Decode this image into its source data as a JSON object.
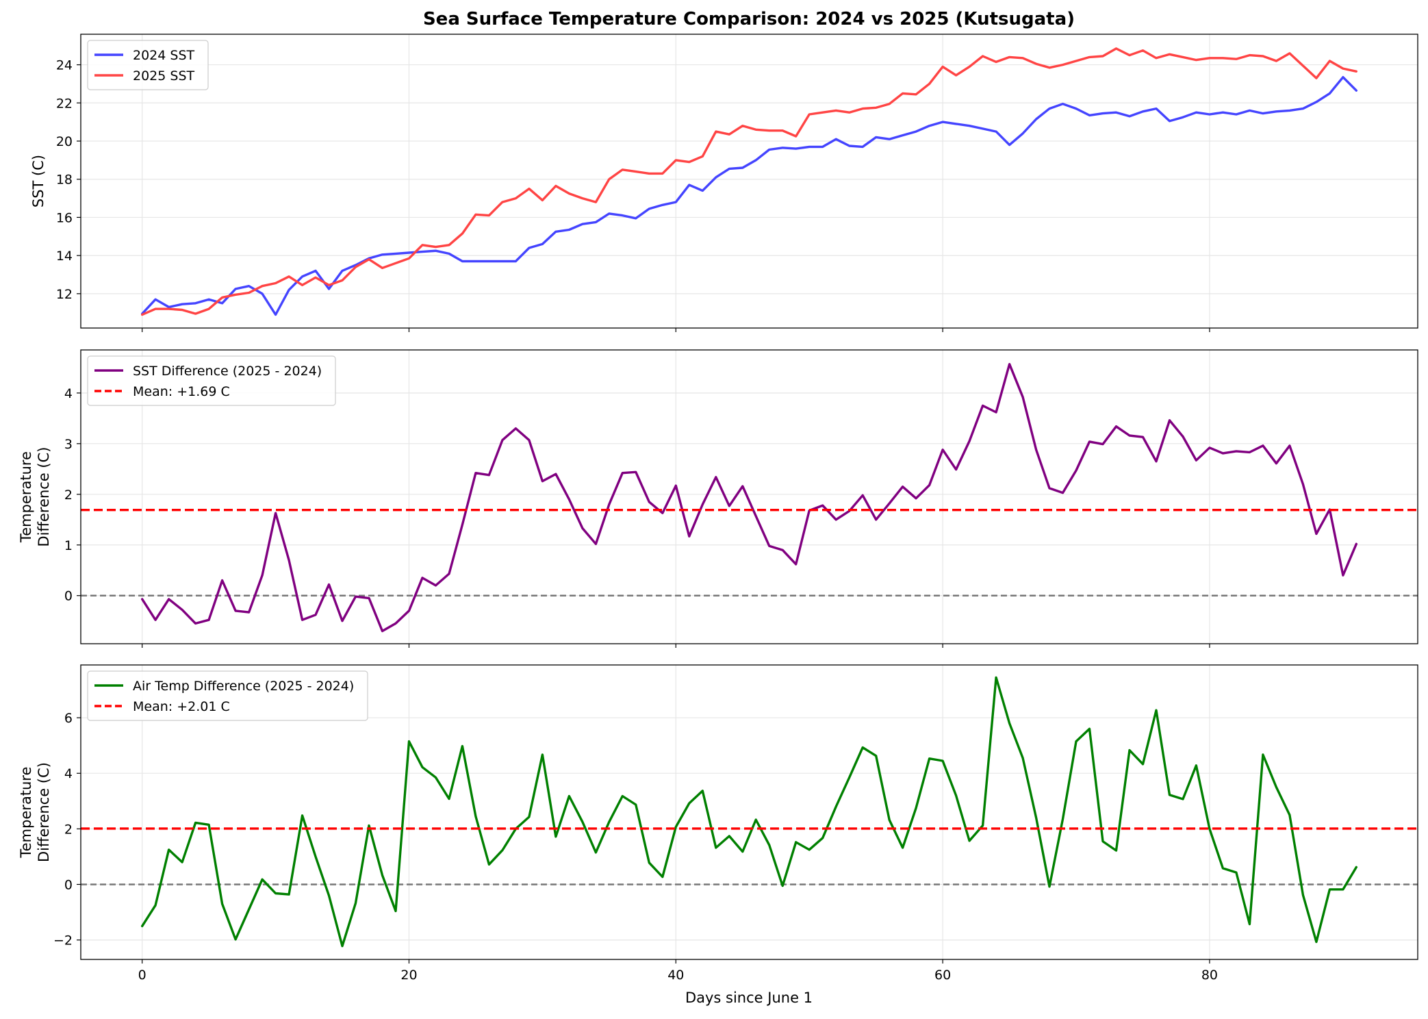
{
  "chart_data": [
    {
      "type": "line",
      "title": "Sea Surface Temperature Comparison: 2024 vs 2025 (Kutsugata)",
      "xlabel": "",
      "ylabel": "SST (C)",
      "xlim": [
        -4.6,
        95.6
      ],
      "ylim": [
        10.2,
        25.6
      ],
      "xticks": [
        0,
        20,
        40,
        60,
        80
      ],
      "xtick_labels": [
        "",
        "",
        "",
        "",
        ""
      ],
      "yticks": [
        12,
        14,
        16,
        18,
        20,
        22,
        24
      ],
      "grid": true,
      "legend_position": "upper-left",
      "series": [
        {
          "name": "2024 SST",
          "color": "#4444ff",
          "line_style": "solid",
          "x": [
            0,
            1,
            2,
            3,
            4,
            5,
            6,
            7,
            8,
            9,
            10,
            11,
            12,
            13,
            14,
            15,
            16,
            17,
            18,
            19,
            20,
            21,
            22,
            23,
            24,
            25,
            26,
            27,
            28,
            29,
            30,
            31,
            32,
            33,
            34,
            35,
            36,
            37,
            38,
            39,
            40,
            41,
            42,
            43,
            44,
            45,
            46,
            47,
            48,
            49,
            50,
            51,
            52,
            53,
            54,
            55,
            56,
            57,
            58,
            59,
            60,
            61,
            62,
            63,
            64,
            65,
            66,
            67,
            68,
            69,
            70,
            71,
            72,
            73,
            74,
            75,
            76,
            77,
            78,
            79,
            80,
            81,
            82,
            83,
            84,
            85,
            86,
            87,
            88,
            89,
            90,
            91
          ],
          "values": [
            10.95,
            11.7,
            11.3,
            11.45,
            11.5,
            11.7,
            11.5,
            12.25,
            12.4,
            12.0,
            10.9,
            12.2,
            12.9,
            13.2,
            12.25,
            13.2,
            13.5,
            13.85,
            14.05,
            14.1,
            14.15,
            14.2,
            14.25,
            14.1,
            13.7,
            13.7,
            13.7,
            13.7,
            13.7,
            14.4,
            14.6,
            15.25,
            15.35,
            15.65,
            15.75,
            16.2,
            16.1,
            15.95,
            16.45,
            16.65,
            16.8,
            17.7,
            17.4,
            18.1,
            18.55,
            18.6,
            19.0,
            19.55,
            19.65,
            19.6,
            19.7,
            19.7,
            20.1,
            19.75,
            19.7,
            20.2,
            20.1,
            20.3,
            20.5,
            20.8,
            21.0,
            20.9,
            20.8,
            20.65,
            20.5,
            19.8,
            20.4,
            21.15,
            21.7,
            21.95,
            21.7,
            21.35,
            21.45,
            21.5,
            21.3,
            21.55,
            21.7,
            21.05,
            21.25,
            21.5,
            21.4,
            21.5,
            21.4,
            21.6,
            21.45,
            21.55,
            21.6,
            21.7,
            22.05,
            22.5,
            23.35,
            22.65
          ]
        },
        {
          "name": "2025 SST",
          "color": "#ff4444",
          "line_style": "solid",
          "x": [
            0,
            1,
            2,
            3,
            4,
            5,
            6,
            7,
            8,
            9,
            10,
            11,
            12,
            13,
            14,
            15,
            16,
            17,
            18,
            19,
            20,
            21,
            22,
            23,
            24,
            25,
            26,
            27,
            28,
            29,
            30,
            31,
            32,
            33,
            34,
            35,
            36,
            37,
            38,
            39,
            40,
            41,
            42,
            43,
            44,
            45,
            46,
            47,
            48,
            49,
            50,
            51,
            52,
            53,
            54,
            55,
            56,
            57,
            58,
            59,
            60,
            61,
            62,
            63,
            64,
            65,
            66,
            67,
            68,
            69,
            70,
            71,
            72,
            73,
            74,
            75,
            76,
            77,
            78,
            79,
            80,
            81,
            82,
            83,
            84,
            85,
            86,
            87,
            88,
            89,
            90,
            91
          ],
          "values": [
            10.9,
            11.2,
            11.2,
            11.15,
            10.95,
            11.2,
            11.8,
            11.95,
            12.05,
            12.4,
            12.55,
            12.9,
            12.45,
            12.85,
            12.45,
            12.7,
            13.4,
            13.8,
            13.35,
            13.6,
            13.85,
            14.55,
            14.45,
            14.55,
            15.15,
            16.15,
            16.1,
            16.8,
            17.0,
            17.5,
            16.9,
            17.65,
            17.25,
            17.0,
            16.8,
            18.0,
            18.5,
            18.4,
            18.3,
            18.3,
            19.0,
            18.9,
            19.2,
            20.5,
            20.35,
            20.8,
            20.6,
            20.55,
            20.55,
            20.25,
            21.4,
            21.5,
            21.6,
            21.5,
            21.7,
            21.75,
            21.95,
            22.5,
            22.45,
            23.0,
            23.9,
            23.45,
            23.9,
            24.45,
            24.15,
            24.4,
            24.35,
            24.05,
            23.85,
            24.0,
            24.2,
            24.4,
            24.45,
            24.85,
            24.5,
            24.75,
            24.35,
            24.55,
            24.4,
            24.25,
            24.35,
            24.35,
            24.3,
            24.5,
            24.45,
            24.2,
            24.6,
            23.95,
            23.3,
            24.2,
            23.8,
            23.65
          ]
        }
      ]
    },
    {
      "type": "line",
      "title": "",
      "xlabel": "",
      "ylabel": "Temperature\nDifference (C)",
      "ylabel_lines": [
        "Temperature",
        "Difference (C)"
      ],
      "xlim": [
        -4.6,
        95.6
      ],
      "ylim": [
        -0.95,
        4.85
      ],
      "xticks": [
        0,
        20,
        40,
        60,
        80
      ],
      "xtick_labels": [
        "",
        "",
        "",
        "",
        ""
      ],
      "yticks": [
        0,
        1,
        2,
        3,
        4
      ],
      "grid": true,
      "legend_position": "upper-left",
      "series": [
        {
          "name": "SST Difference (2025 - 2024)",
          "color": "#800080",
          "line_style": "solid",
          "x": [
            0,
            1,
            2,
            3,
            4,
            5,
            6,
            7,
            8,
            9,
            10,
            11,
            12,
            13,
            14,
            15,
            16,
            17,
            18,
            19,
            20,
            21,
            22,
            23,
            24,
            25,
            26,
            27,
            28,
            29,
            30,
            31,
            32,
            33,
            34,
            35,
            36,
            37,
            38,
            39,
            40,
            41,
            42,
            43,
            44,
            45,
            46,
            47,
            48,
            49,
            50,
            51,
            52,
            53,
            54,
            55,
            56,
            57,
            58,
            59,
            60,
            61,
            62,
            63,
            64,
            65,
            66,
            67,
            68,
            69,
            70,
            71,
            72,
            73,
            74,
            75,
            76,
            77,
            78,
            79,
            80,
            81,
            82,
            83,
            84,
            85,
            86,
            87,
            88,
            89,
            90,
            91
          ],
          "values": [
            -0.07,
            -0.48,
            -0.07,
            -0.28,
            -0.55,
            -0.48,
            0.3,
            -0.3,
            -0.33,
            0.4,
            1.63,
            0.7,
            -0.48,
            -0.38,
            0.22,
            -0.5,
            -0.02,
            -0.05,
            -0.7,
            -0.55,
            -0.3,
            0.35,
            0.2,
            0.43,
            1.4,
            2.42,
            2.38,
            3.07,
            3.3,
            3.07,
            2.26,
            2.4,
            1.9,
            1.33,
            1.02,
            1.8,
            2.42,
            2.44,
            1.85,
            1.63,
            2.17,
            1.17,
            1.8,
            2.34,
            1.77,
            2.16,
            1.57,
            0.98,
            0.9,
            0.62,
            1.68,
            1.78,
            1.5,
            1.67,
            1.98,
            1.5,
            1.82,
            2.15,
            1.92,
            2.18,
            2.88,
            2.49,
            3.05,
            3.75,
            3.62,
            4.57,
            3.92,
            2.88,
            2.12,
            2.03,
            2.47,
            3.04,
            2.99,
            3.34,
            3.16,
            3.13,
            2.65,
            3.46,
            3.14,
            2.67,
            2.92,
            2.81,
            2.85,
            2.83,
            2.96,
            2.61,
            2.96,
            2.2,
            1.22,
            1.7,
            0.4,
            1.02
          ]
        },
        {
          "name": "Mean: +1.69 C",
          "color": "#ff0000",
          "line_style": "dashed",
          "y": 1.69
        },
        {
          "name": "",
          "color": "#777777",
          "line_style": "dashed",
          "y": 0
        }
      ]
    },
    {
      "type": "line",
      "title": "",
      "xlabel": "Days since June 1",
      "ylabel": "Temperature\nDifference (C)",
      "ylabel_lines": [
        "Temperature",
        "Difference (C)"
      ],
      "xlim": [
        -4.6,
        95.6
      ],
      "ylim": [
        -2.7,
        7.9
      ],
      "xticks": [
        0,
        20,
        40,
        60,
        80
      ],
      "xtick_labels": [
        "0",
        "20",
        "40",
        "60",
        "80"
      ],
      "yticks": [
        -2,
        0,
        2,
        4,
        6
      ],
      "grid": true,
      "legend_position": "upper-left",
      "series": [
        {
          "name": "Air Temp Difference (2025 - 2024)",
          "color": "#008000",
          "line_style": "solid",
          "x": [
            0,
            1,
            2,
            3,
            4,
            5,
            6,
            7,
            8,
            9,
            10,
            11,
            12,
            13,
            14,
            15,
            16,
            17,
            18,
            19,
            20,
            21,
            22,
            23,
            24,
            25,
            26,
            27,
            28,
            29,
            30,
            31,
            32,
            33,
            34,
            35,
            36,
            37,
            38,
            39,
            40,
            41,
            42,
            43,
            44,
            45,
            46,
            47,
            48,
            49,
            50,
            51,
            52,
            53,
            54,
            55,
            56,
            57,
            58,
            59,
            60,
            61,
            62,
            63,
            64,
            65,
            66,
            67,
            68,
            69,
            70,
            71,
            72,
            73,
            74,
            75,
            76,
            77,
            78,
            79,
            80,
            81,
            82,
            83,
            84,
            85,
            86,
            87,
            88,
            89,
            90,
            91
          ],
          "values": [
            -1.5,
            -0.75,
            1.25,
            0.8,
            2.22,
            2.15,
            -0.7,
            -1.98,
            -0.9,
            0.18,
            -0.32,
            -0.36,
            2.48,
            1.0,
            -0.4,
            -2.22,
            -0.67,
            2.12,
            0.33,
            -0.96,
            5.15,
            4.22,
            3.85,
            3.08,
            4.98,
            2.45,
            0.72,
            1.23,
            2.0,
            2.43,
            4.67,
            1.72,
            3.18,
            2.25,
            1.15,
            2.25,
            3.18,
            2.87,
            0.78,
            0.27,
            2.07,
            2.92,
            3.37,
            1.32,
            1.74,
            1.18,
            2.33,
            1.42,
            -0.05,
            1.52,
            1.25,
            1.67,
            2.8,
            3.85,
            4.93,
            4.63,
            2.32,
            1.32,
            2.75,
            4.53,
            4.45,
            3.2,
            1.57,
            2.12,
            7.45,
            5.8,
            4.55,
            2.4,
            -0.08,
            2.35,
            5.15,
            5.6,
            1.55,
            1.22,
            4.83,
            4.33,
            6.27,
            3.22,
            3.07,
            4.28,
            2.0,
            0.58,
            0.43,
            -1.43,
            4.67,
            3.5,
            2.5,
            -0.38,
            -2.07,
            -0.18,
            -0.18,
            0.62
          ]
        },
        {
          "name": "Mean: +2.01 C",
          "color": "#ff0000",
          "line_style": "dashed",
          "y": 2.01
        },
        {
          "name": "",
          "color": "#777777",
          "line_style": "dashed",
          "y": 0
        }
      ]
    }
  ]
}
